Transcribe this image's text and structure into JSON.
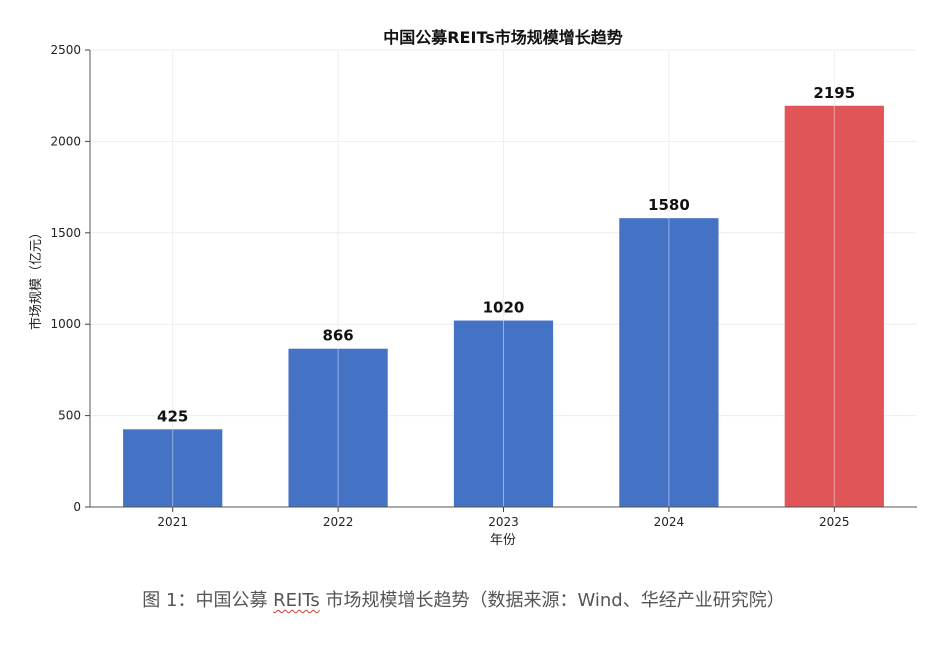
{
  "chart_data": {
    "type": "bar",
    "title": "中国公募REITs市场规模增长趋势",
    "xlabel": "年份",
    "ylabel": "市场规模（亿元）",
    "categories": [
      "2021",
      "2022",
      "2023",
      "2024",
      "2025"
    ],
    "values": [
      425,
      866,
      1020,
      1580,
      2195
    ],
    "value_labels": [
      "425",
      "866",
      "1020",
      "1580",
      "2195"
    ],
    "ylim": [
      0,
      2500
    ],
    "yticks": [
      0,
      500,
      1000,
      1500,
      2000,
      2500
    ],
    "ytick_labels": [
      "0",
      "500",
      "1000",
      "1500",
      "2000",
      "2500"
    ],
    "grid": true,
    "colors": {
      "default": "#4472c4",
      "highlight": "#e05558",
      "highlight_index": 4
    }
  },
  "caption": {
    "prefix": "图 1：中国公募 ",
    "reits": "REITs",
    "suffix": " 市场规模增长趋势（数据来源：Wind、华经产业研究院）"
  }
}
